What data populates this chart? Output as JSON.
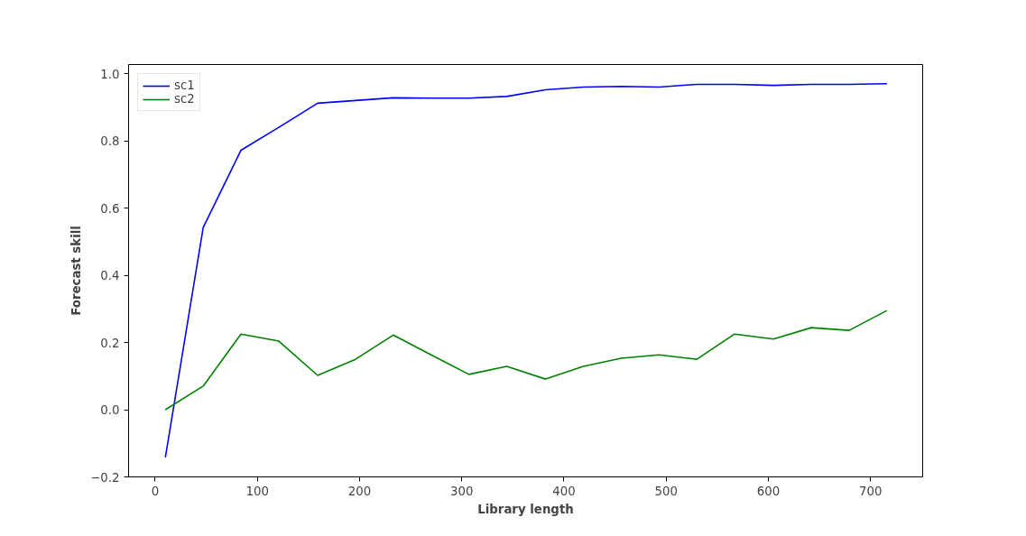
{
  "chart_data": {
    "type": "line",
    "xlabel": "Library length",
    "ylabel": "Forecast skill",
    "x": [
      10,
      47,
      84,
      121,
      159,
      196,
      233,
      270,
      307,
      344,
      382,
      419,
      456,
      493,
      530,
      567,
      605,
      642,
      679,
      716
    ],
    "series": [
      {
        "name": "sc1",
        "color": "#0000ff",
        "values": [
          -0.142,
          0.542,
          0.772,
          0.84,
          0.912,
          0.92,
          0.928,
          0.927,
          0.927,
          0.932,
          0.952,
          0.96,
          0.962,
          0.96,
          0.968,
          0.968,
          0.965,
          0.968,
          0.968,
          0.97
        ]
      },
      {
        "name": "sc2",
        "color": "#008000",
        "values": [
          0.0,
          0.07,
          0.225,
          0.204,
          0.102,
          0.15,
          0.222,
          0.163,
          0.105,
          0.129,
          0.091,
          0.129,
          0.153,
          0.163,
          0.15,
          0.225,
          0.21,
          0.244,
          0.236,
          0.295
        ]
      }
    ],
    "xlim": [
      -26,
      751
    ],
    "ylim": [
      -0.2,
      1.027
    ],
    "xticks": [
      0,
      100,
      200,
      300,
      400,
      500,
      600,
      700
    ],
    "yticks": [
      {
        "value": -0.2,
        "label": "−0.2"
      },
      {
        "value": 0,
        "label": "0.0"
      },
      {
        "value": 0.2,
        "label": "0.2"
      },
      {
        "value": 0.4,
        "label": "0.4"
      },
      {
        "value": 0.6,
        "label": "0.6"
      },
      {
        "value": 0.8,
        "label": "0.8"
      },
      {
        "value": 1.0,
        "label": "1.0"
      }
    ],
    "legend": "top left",
    "grid": false,
    "line_style": "solid",
    "marker": "none"
  }
}
